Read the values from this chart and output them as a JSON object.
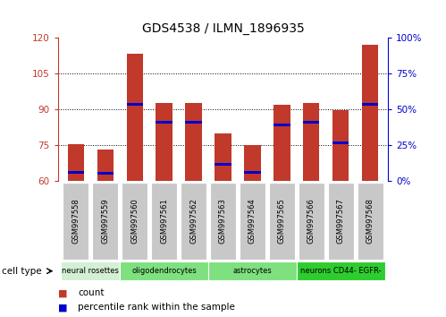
{
  "title": "GDS4538 / ILMN_1896935",
  "samples": [
    "GSM997558",
    "GSM997559",
    "GSM997560",
    "GSM997561",
    "GSM997562",
    "GSM997563",
    "GSM997564",
    "GSM997565",
    "GSM997566",
    "GSM997567",
    "GSM997568"
  ],
  "bar_tops": [
    75.5,
    73.0,
    113.5,
    92.5,
    92.5,
    80.0,
    75.0,
    92.0,
    92.5,
    89.5,
    117.0
  ],
  "blue_values_left": [
    63.5,
    63.0,
    92.0,
    84.5,
    84.5,
    67.0,
    63.5,
    83.5,
    84.5,
    76.0,
    92.0
  ],
  "baseline": 60,
  "ylim_left": [
    60,
    120
  ],
  "ylim_right": [
    0,
    100
  ],
  "yticks_left": [
    60,
    75,
    90,
    105,
    120
  ],
  "yticks_right": [
    0,
    25,
    50,
    75,
    100
  ],
  "cell_type_groups": [
    {
      "label": "neural rosettes",
      "indices": [
        0,
        1
      ],
      "color": "#d4f0d4"
    },
    {
      "label": "oligodendrocytes",
      "indices": [
        2,
        3,
        4
      ],
      "color": "#7EE07E"
    },
    {
      "label": "astrocytes",
      "indices": [
        5,
        6,
        7
      ],
      "color": "#7EE07E"
    },
    {
      "label": "neurons CD44- EGFR-",
      "indices": [
        8,
        9,
        10
      ],
      "color": "#2ECC2E"
    }
  ],
  "bar_color": "#C0392B",
  "blue_color": "#0000CD",
  "tick_bg_color": "#C8C8C8",
  "legend_count_color": "#C0392B",
  "legend_pct_color": "#0000CD"
}
